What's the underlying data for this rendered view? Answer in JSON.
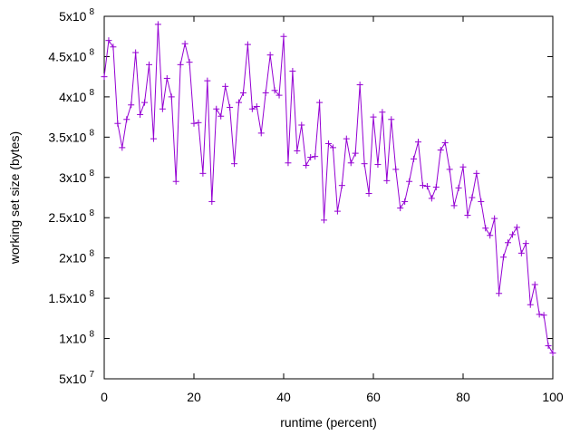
{
  "chart_data": {
    "type": "line",
    "xlabel": "runtime (percent)",
    "ylabel": "working set size (bytes)",
    "xlim": [
      0,
      100
    ],
    "ylim": [
      50000000,
      500000000
    ],
    "grid": false,
    "legend": "none",
    "series_color": "#9400d3",
    "x_ticks": [
      {
        "value": 0,
        "label": "0"
      },
      {
        "value": 20,
        "label": "20"
      },
      {
        "value": 40,
        "label": "40"
      },
      {
        "value": 60,
        "label": "60"
      },
      {
        "value": 80,
        "label": "80"
      },
      {
        "value": 100,
        "label": "100"
      }
    ],
    "y_ticks": [
      {
        "value": 50000000,
        "mantissa": "5x10",
        "exp": "7"
      },
      {
        "value": 100000000,
        "mantissa": "1x10",
        "exp": "8"
      },
      {
        "value": 150000000,
        "mantissa": "1.5x10",
        "exp": "8"
      },
      {
        "value": 200000000,
        "mantissa": "2x10",
        "exp": "8"
      },
      {
        "value": 250000000,
        "mantissa": "2.5x10",
        "exp": "8"
      },
      {
        "value": 300000000,
        "mantissa": "3x10",
        "exp": "8"
      },
      {
        "value": 350000000,
        "mantissa": "3.5x10",
        "exp": "8"
      },
      {
        "value": 400000000,
        "mantissa": "4x10",
        "exp": "8"
      },
      {
        "value": 450000000,
        "mantissa": "4.5x10",
        "exp": "8"
      },
      {
        "value": 500000000,
        "mantissa": "5x10",
        "exp": "8"
      }
    ],
    "series": [
      {
        "x": [
          0,
          1,
          2,
          3,
          4,
          5,
          6,
          7,
          8,
          9,
          10,
          11,
          12,
          13,
          14,
          15,
          16,
          17,
          18,
          19,
          20,
          21,
          22,
          23,
          24,
          25,
          26,
          27,
          28,
          29,
          30,
          31,
          32,
          33,
          34,
          35,
          36,
          37,
          38,
          39,
          40,
          41,
          42,
          43,
          44,
          45,
          46,
          47,
          48,
          49,
          50,
          51,
          52,
          53,
          54,
          55,
          56,
          57,
          58,
          59,
          60,
          61,
          62,
          63,
          64,
          65,
          66,
          67,
          68,
          69,
          70,
          71,
          72,
          73,
          74,
          75,
          76,
          77,
          78,
          79,
          80,
          81,
          82,
          83,
          84,
          85,
          86,
          87,
          88,
          89,
          90,
          91,
          92,
          93,
          94,
          95,
          96,
          97,
          98,
          99,
          100
        ],
        "y": [
          425000000,
          470000000,
          462000000,
          367000000,
          337000000,
          372000000,
          390000000,
          455000000,
          378000000,
          393000000,
          440000000,
          348000000,
          490000000,
          385000000,
          423000000,
          400000000,
          295000000,
          440000000,
          466000000,
          443000000,
          367000000,
          368000000,
          305000000,
          420000000,
          270000000,
          385000000,
          376000000,
          413000000,
          387000000,
          317000000,
          393000000,
          405000000,
          465000000,
          385000000,
          388000000,
          355000000,
          405000000,
          452000000,
          408000000,
          402000000,
          475000000,
          318000000,
          432000000,
          333000000,
          365000000,
          315000000,
          325000000,
          326000000,
          393000000,
          247000000,
          342000000,
          337000000,
          258000000,
          290000000,
          348000000,
          318000000,
          330000000,
          415000000,
          317000000,
          280000000,
          375000000,
          316000000,
          381000000,
          296000000,
          372000000,
          310000000,
          262000000,
          270000000,
          295000000,
          323000000,
          344000000,
          290000000,
          289000000,
          274000000,
          288000000,
          334000000,
          343000000,
          310000000,
          265000000,
          287000000,
          313000000,
          253000000,
          275000000,
          305000000,
          270000000,
          237000000,
          228000000,
          249000000,
          156000000,
          201000000,
          219000000,
          229000000,
          238000000,
          206000000,
          218000000,
          142000000,
          167000000,
          130000000,
          129000000,
          91000000,
          82000000
        ]
      }
    ]
  }
}
